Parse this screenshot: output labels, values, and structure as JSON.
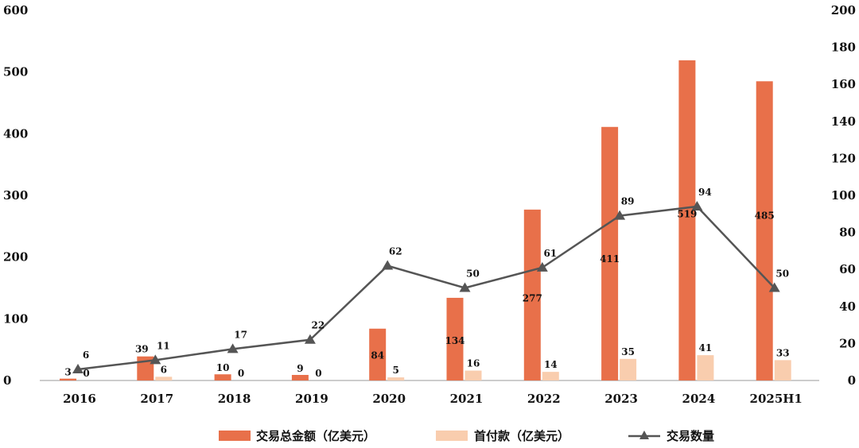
{
  "chart_data": {
    "type": "bar",
    "categories": [
      "2016",
      "2017",
      "2018",
      "2019",
      "2020",
      "2021",
      "2022",
      "2023",
      "2024",
      "2025H1"
    ],
    "series": [
      {
        "name": "交易总金额（亿美元）",
        "type": "bar",
        "axis": "left",
        "color": "#E8704A",
        "values": [
          3,
          39,
          10,
          9,
          84,
          134,
          277,
          411,
          519,
          485
        ]
      },
      {
        "name": "首付款（亿美元）",
        "type": "bar",
        "axis": "left",
        "color": "#F9CDAE",
        "values": [
          0,
          6,
          0,
          0,
          5,
          16,
          14,
          35,
          41,
          33
        ]
      },
      {
        "name": "交易数量",
        "type": "line",
        "axis": "right",
        "color": "#555555",
        "marker": "triangle",
        "values": [
          6,
          11,
          17,
          22,
          62,
          50,
          61,
          89,
          94,
          50
        ]
      }
    ],
    "y_left": {
      "ylim": [
        0,
        600
      ],
      "ticks": [
        "0",
        "100",
        "200",
        "300",
        "400",
        "500",
        "600"
      ]
    },
    "y_right": {
      "ylim": [
        0,
        200
      ],
      "ticks": [
        "0",
        "20",
        "40",
        "60",
        "80",
        "100",
        "120",
        "140",
        "160",
        "180",
        "200"
      ]
    },
    "grid": false,
    "legend_position": "bottom"
  }
}
